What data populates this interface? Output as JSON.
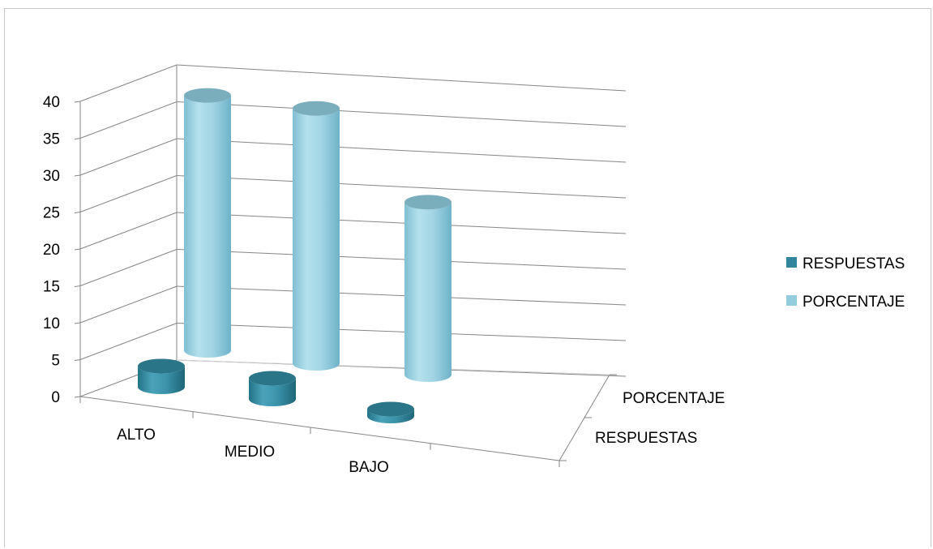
{
  "chart_data": {
    "type": "bar",
    "subtype": "3d-cylinder",
    "title": "",
    "xlabel": "",
    "ylabel": "",
    "ylim": [
      0,
      40
    ],
    "y_ticks": [
      "0",
      "5",
      "10",
      "15",
      "20",
      "25",
      "30",
      "35",
      "40"
    ],
    "categories": [
      "ALTO",
      "MEDIO",
      "BAJO"
    ],
    "series": [
      {
        "name": "RESPUESTAS",
        "values": [
          3,
          3,
          1
        ],
        "color": "#31859c"
      },
      {
        "name": "PORCENTAJE",
        "values": [
          36,
          36,
          24
        ],
        "color": "#93cddd"
      }
    ],
    "depth_labels": [
      "PORCENTAJE",
      "RESPUESTAS"
    ],
    "grid": true,
    "legend_position": "right"
  }
}
